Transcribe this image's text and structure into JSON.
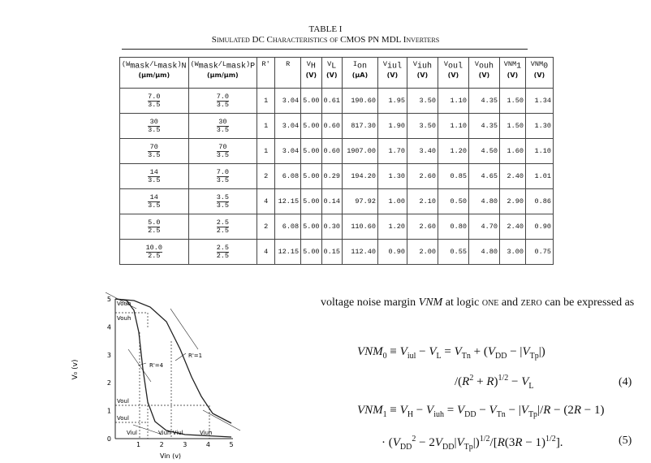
{
  "table": {
    "label": "TABLE I",
    "caption": "Simulated DC Characteristics of CMOS PN MDL Inverters",
    "columns": [
      {
        "parts": [
          "(W",
          "mask",
          "/L",
          "mask",
          ")",
          "N"
        ],
        "unit": "(μm/μm)"
      },
      {
        "parts": [
          "(W",
          "mask",
          "/L",
          "mask",
          ")",
          "P"
        ],
        "unit": "(μm/μm)"
      },
      {
        "parts": [
          "R'"
        ]
      },
      {
        "parts": [
          "R"
        ]
      },
      {
        "parts": [
          "V",
          "H"
        ],
        "unit": "(V)"
      },
      {
        "parts": [
          "V",
          "L"
        ],
        "unit": "(V)"
      },
      {
        "parts": [
          "I",
          "on"
        ],
        "unit": "(μA)"
      },
      {
        "parts": [
          "V",
          "iul"
        ],
        "unit": "(V)"
      },
      {
        "parts": [
          "V",
          "iuh"
        ],
        "unit": "(V)"
      },
      {
        "parts": [
          "V",
          "oul"
        ],
        "unit": "(V)"
      },
      {
        "parts": [
          "V",
          "ouh"
        ],
        "unit": "(V)"
      },
      {
        "parts": [
          "VNM",
          "1"
        ],
        "unit": "(V)"
      },
      {
        "parts": [
          "VNM",
          "0"
        ],
        "unit": "(V)"
      }
    ],
    "rows": [
      [
        {
          "num": "7.0",
          "den": "3.5"
        },
        {
          "num": "7.0",
          "den": "3.5"
        },
        "1",
        "3.04",
        "5.00",
        "0.61",
        "190.60",
        "1.95",
        "3.50",
        "1.10",
        "4.35",
        "1.50",
        "1.34"
      ],
      [
        {
          "num": "30",
          "den": "3.5"
        },
        {
          "num": "30",
          "den": "3.5"
        },
        "1",
        "3.04",
        "5.00",
        "0.60",
        "817.30",
        "1.90",
        "3.50",
        "1.10",
        "4.35",
        "1.50",
        "1.30"
      ],
      [
        {
          "num": "70",
          "den": "3.5"
        },
        {
          "num": "70",
          "den": "3.5"
        },
        "1",
        "3.04",
        "5.00",
        "0.60",
        "1907.00",
        "1.70",
        "3.40",
        "1.20",
        "4.50",
        "1.60",
        "1.10"
      ],
      [
        {
          "num": "14",
          "den": "3.5"
        },
        {
          "num": "7.0",
          "den": "3.5"
        },
        "2",
        "6.08",
        "5.00",
        "0.29",
        "194.20",
        "1.30",
        "2.60",
        "0.85",
        "4.65",
        "2.40",
        "1.01"
      ],
      [
        {
          "num": "14",
          "den": "3.5"
        },
        {
          "num": "3.5",
          "den": "3.5"
        },
        "4",
        "12.15",
        "5.00",
        "0.14",
        "97.92",
        "1.00",
        "2.10",
        "0.50",
        "4.80",
        "2.90",
        "0.86"
      ],
      [
        {
          "num": "5.0",
          "den": "2.5"
        },
        {
          "num": "2.5",
          "den": "2.5"
        },
        "2",
        "6.08",
        "5.00",
        "0.30",
        "110.60",
        "1.20",
        "2.60",
        "0.80",
        "4.70",
        "2.40",
        "0.90"
      ],
      [
        {
          "num": "10.0",
          "den": "2.5"
        },
        {
          "num": "2.5",
          "den": "2.5"
        },
        "4",
        "12.15",
        "5.00",
        "0.15",
        "112.40",
        "0.90",
        "2.00",
        "0.55",
        "4.80",
        "3.00",
        "0.75"
      ]
    ]
  },
  "figure": {
    "y_label": "V₀ (v)",
    "x_label": "Vin (v)",
    "x_tick_labels": [
      "1",
      "2",
      "3",
      "4",
      "5"
    ],
    "y_tick_labels": [
      "0",
      "1",
      "2",
      "3",
      "4",
      "5"
    ],
    "annotations": [
      "Vouh",
      "Vouh",
      "Voul",
      "Voul",
      "Viul",
      "Viuh Viul",
      "Viuh",
      "R'=1",
      "R'=4"
    ]
  },
  "text": {
    "paragraph": [
      "voltage noise margin ",
      "VNM",
      " at logic ",
      "one",
      " and ",
      "zero",
      " can be expressed as"
    ]
  },
  "equations": [
    {
      "lines": [
        [
          "VNM",
          "0",
          " ≡ ",
          "V",
          "iul",
          " − ",
          "V",
          "L",
          " = ",
          "V",
          "Tn",
          " + (",
          "V",
          "DD",
          " − |",
          "V",
          "Tp",
          "|)"
        ],
        [
          "/(",
          "R",
          "2",
          " + ",
          "R",
          ")",
          "1/2",
          " − ",
          "V",
          "L"
        ]
      ],
      "number": "(4)"
    },
    {
      "lines": [
        [
          "VNM",
          "1",
          " ≡ ",
          "V",
          "H",
          " − ",
          "V",
          "iuh",
          " = ",
          "V",
          "DD",
          " − ",
          "V",
          "Tn",
          " − |",
          "V",
          "Tp",
          "|/",
          "R",
          " − (2",
          "R",
          " − 1)"
        ],
        [
          "· (",
          "V",
          "DD",
          "2",
          " − 2",
          "V",
          "DD",
          "|",
          "V",
          "Tp",
          "|)",
          "1/2",
          "/[",
          "R",
          "(3",
          "R",
          " − 1)",
          "1/2",
          "]."
        ]
      ],
      "number": "(5)"
    }
  ]
}
